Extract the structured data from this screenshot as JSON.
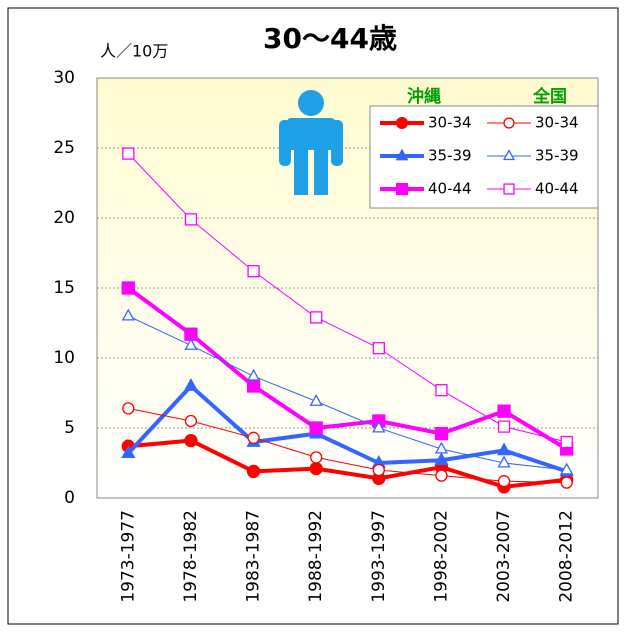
{
  "chart_data": {
    "type": "line",
    "title": "30〜44歳",
    "y_label": "人／10万",
    "categories": [
      "1973-1977",
      "1978-1982",
      "1983-1987",
      "1988-1992",
      "1993-1997",
      "1998-2002",
      "2003-2007",
      "2008-2012"
    ],
    "ylim": [
      0,
      30
    ],
    "yticks": [
      0,
      5,
      10,
      15,
      20,
      25,
      30
    ],
    "grid": true,
    "legend_groups": [
      "沖縄",
      "全国"
    ],
    "legend_group_color": "#00a000",
    "series": [
      {
        "name": "30-34",
        "group": 0,
        "color": "#ff0000",
        "marker": "circle",
        "filled": true,
        "values": [
          3.7,
          4.1,
          1.9,
          2.1,
          1.4,
          2.2,
          0.8,
          1.3
        ]
      },
      {
        "name": "35-39",
        "group": 0,
        "color": "#3366ff",
        "marker": "triangle",
        "filled": true,
        "values": [
          3.2,
          8.0,
          4.0,
          4.6,
          2.5,
          2.7,
          3.4,
          1.9
        ]
      },
      {
        "name": "40-44",
        "group": 0,
        "color": "#ff00ff",
        "marker": "square",
        "filled": true,
        "values": [
          15.0,
          11.7,
          8.0,
          5.0,
          5.5,
          4.6,
          6.2,
          3.5
        ]
      },
      {
        "name": "30-34",
        "group": 1,
        "color": "#ff0000",
        "marker": "circle",
        "filled": false,
        "values": [
          6.4,
          5.5,
          4.3,
          2.9,
          2.0,
          1.6,
          1.2,
          1.1
        ]
      },
      {
        "name": "35-39",
        "group": 1,
        "color": "#3366ff",
        "marker": "triangle",
        "filled": false,
        "values": [
          13.0,
          10.9,
          8.7,
          6.9,
          5.0,
          3.5,
          2.5,
          2.0
        ]
      },
      {
        "name": "40-44",
        "group": 1,
        "color": "#ff00ff",
        "marker": "square",
        "filled": false,
        "values": [
          24.6,
          19.9,
          16.2,
          12.9,
          10.7,
          7.7,
          5.1,
          4.0
        ]
      }
    ]
  }
}
